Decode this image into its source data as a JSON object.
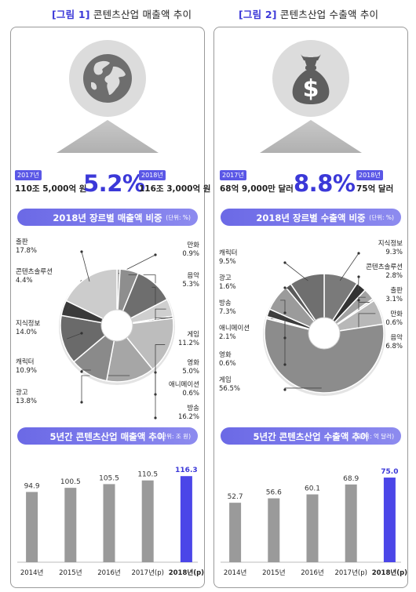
{
  "left": {
    "fig_label": "[그림 1]",
    "fig_title": "콘텐츠산업 매출액 추이",
    "icon": "globe-icon",
    "kpi": {
      "prev_year": "2017년",
      "prev_value": "110조 5,000억 원",
      "growth": "5.2%",
      "curr_year": "2018년",
      "curr_value": "116조 3,000억 원"
    },
    "pie_header": {
      "title": "2018년 장르별 매출액 비중",
      "unit": "(단위: %)"
    },
    "bar_header": {
      "title": "5년간 콘텐츠산업 매출액 추이",
      "unit": "(단위: 조 원)"
    }
  },
  "right": {
    "fig_label": "[그림 2]",
    "fig_title": "콘텐츠산업 수출액 추이",
    "icon": "money-bag-icon",
    "kpi": {
      "prev_year": "2017년",
      "prev_value": "68억 9,000만 달러",
      "growth": "8.8%",
      "curr_year": "2018년",
      "curr_value": "75억 달러"
    },
    "pie_header": {
      "title": "2018년 장르별 수출액 비중",
      "unit": "(단위: %)"
    },
    "bar_header": {
      "title": "5년간 콘텐츠산업 수출액 추이",
      "unit": "(단위: 억 달러)"
    }
  },
  "colors": {
    "accent": "#3b38d8",
    "highlight_bar": "#4b46e8",
    "bar": "#9a9a9a",
    "pill": "#7472e8"
  },
  "chart_data": [
    {
      "id": "sales_share",
      "type": "pie",
      "donut": true,
      "slices": [
        {
          "label": "만화",
          "value": 0.9,
          "color": "#b5b5b5"
        },
        {
          "label": "음악",
          "value": 5.3,
          "color": "#8e8e8e"
        },
        {
          "label": "게임",
          "value": 11.2,
          "color": "#6e6e6e"
        },
        {
          "label": "영화",
          "value": 5.0,
          "color": "#cfcfcf"
        },
        {
          "label": "애니메이션",
          "value": 0.6,
          "color": "#444444"
        },
        {
          "label": "방송",
          "value": 16.2,
          "color": "#bdbdbd"
        },
        {
          "label": "광고",
          "value": 13.8,
          "color": "#a6a6a6"
        },
        {
          "label": "캐릭터",
          "value": 10.9,
          "color": "#8a8a8a"
        },
        {
          "label": "지식정보",
          "value": 14.0,
          "color": "#6a6a6a"
        },
        {
          "label": "콘텐츠솔루션",
          "value": 4.4,
          "color": "#3a3a3a"
        },
        {
          "label": "출판",
          "value": 17.8,
          "color": "#cccccc"
        }
      ]
    },
    {
      "id": "export_share",
      "type": "pie",
      "donut": true,
      "slices": [
        {
          "label": "지식정보",
          "value": 9.3,
          "color": "#7a7a7a"
        },
        {
          "label": "콘텐츠솔루션",
          "value": 2.8,
          "color": "#333333"
        },
        {
          "label": "출판",
          "value": 3.1,
          "color": "#a2a2a2"
        },
        {
          "label": "만화",
          "value": 0.6,
          "color": "#d6d6d6"
        },
        {
          "label": "음악",
          "value": 6.8,
          "color": "#b8b8b8"
        },
        {
          "label": "게임",
          "value": 56.5,
          "color": "#8c8c8c"
        },
        {
          "label": "영화",
          "value": 0.6,
          "color": "#e0e0e0"
        },
        {
          "label": "애니메이션",
          "value": 2.1,
          "color": "#3c3c3c"
        },
        {
          "label": "방송",
          "value": 7.3,
          "color": "#9b9b9b"
        },
        {
          "label": "광고",
          "value": 1.6,
          "color": "#5a5a5a"
        },
        {
          "label": "캐릭터",
          "value": 9.5,
          "color": "#6f6f6f"
        }
      ]
    },
    {
      "id": "sales_trend",
      "type": "bar",
      "categories": [
        "2014년",
        "2015년",
        "2016년",
        "2017년(p)",
        "2018년(p)"
      ],
      "values": [
        94.9,
        100.5,
        105.5,
        110.5,
        116.3
      ],
      "ylim": [
        0,
        125
      ],
      "highlight_index": 4
    },
    {
      "id": "export_trend",
      "type": "bar",
      "categories": [
        "2014년",
        "2015년",
        "2016년",
        "2017년(p)",
        "2018년(p)"
      ],
      "values": [
        52.7,
        56.6,
        60.1,
        68.9,
        75.0
      ],
      "ylim": [
        0,
        82
      ],
      "highlight_index": 4
    }
  ]
}
